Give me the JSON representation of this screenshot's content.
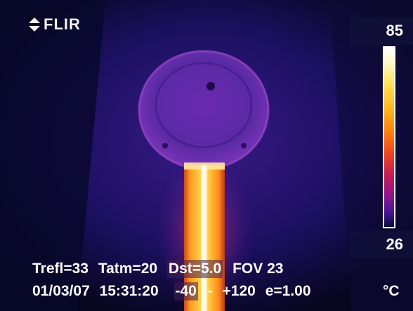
{
  "brand": {
    "name": "FLIR"
  },
  "scale": {
    "max": "85",
    "min": "26",
    "unit": "°C"
  },
  "readout": {
    "trefl": "Trefl=33",
    "tatm": "Tatm=20",
    "dst": "Dst=5.0",
    "fov": "FOV 23",
    "date": "01/03/07",
    "time": "15:31:20",
    "range_low": "-40",
    "range_sep": "-",
    "range_high": "+120",
    "emissivity": "e=1.00"
  },
  "colors": {
    "palette": "iron",
    "background": "#05051a",
    "text": "#ffffff"
  }
}
